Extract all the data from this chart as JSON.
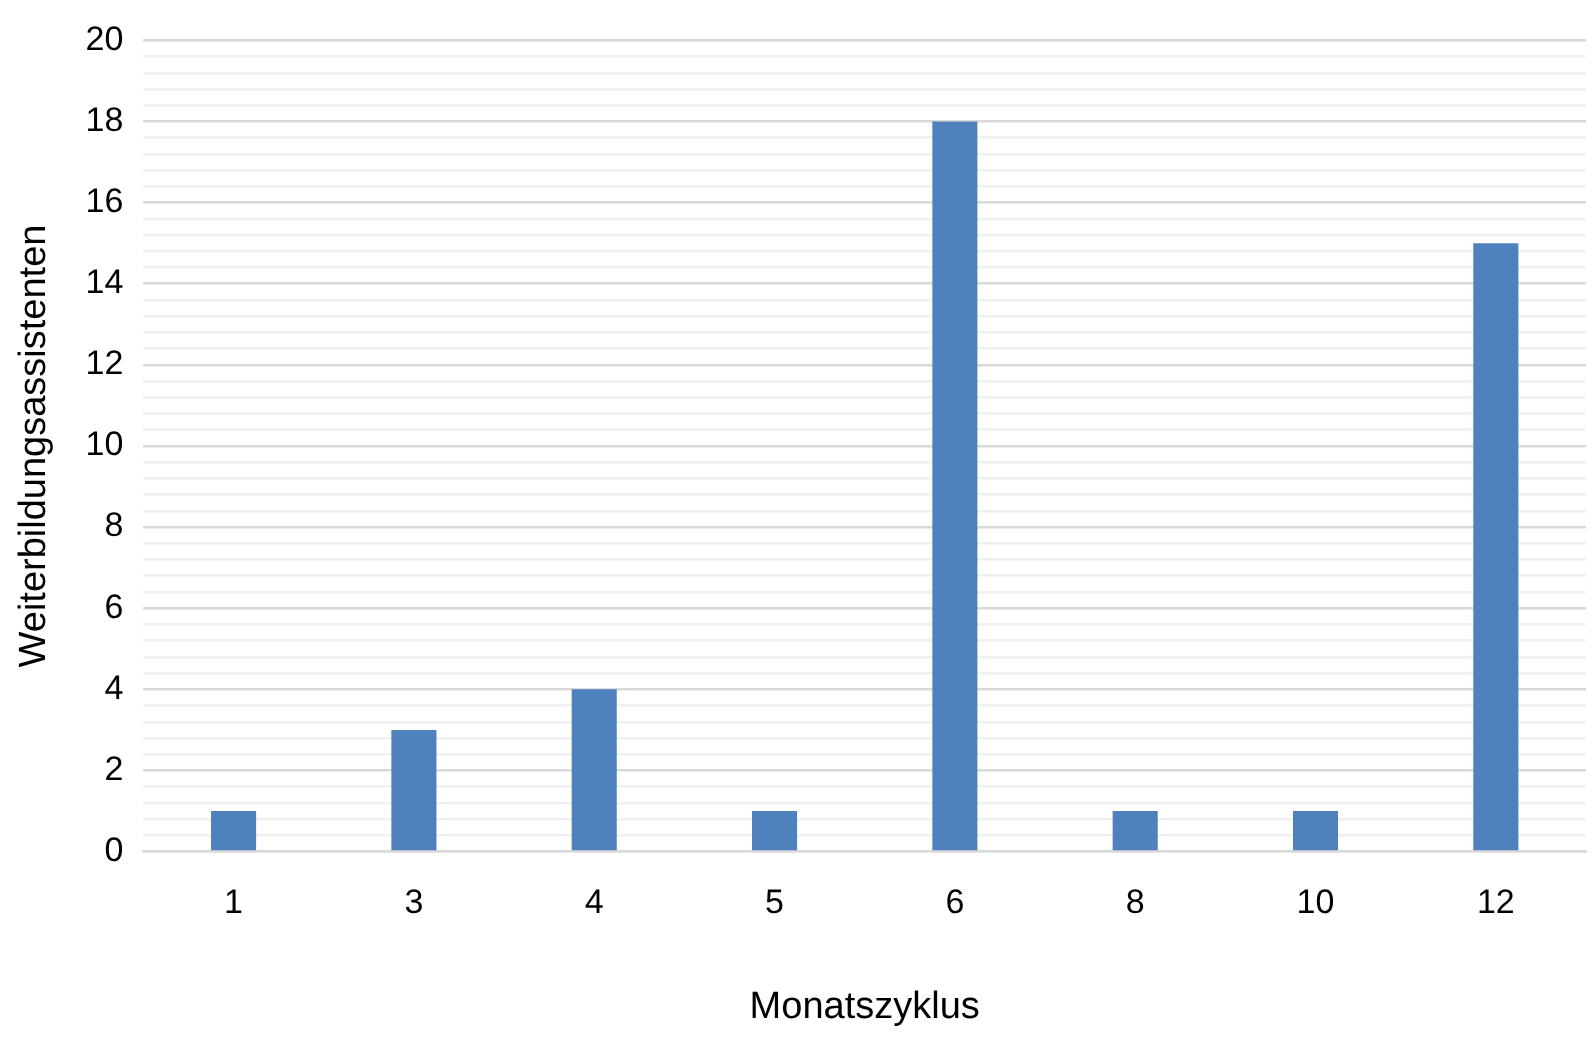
{
  "chart_data": {
    "type": "bar",
    "xlabel": "Monatszyklus",
    "ylabel": "Weiterbildungsassistenten",
    "categories": [
      "1",
      "3",
      "4",
      "5",
      "6",
      "8",
      "10",
      "12"
    ],
    "values": [
      1,
      3,
      4,
      1,
      18,
      1,
      1,
      15
    ],
    "color": "#4f81bd",
    "ylim": [
      0,
      20
    ],
    "yticks": [
      0,
      {
        "value": 0.4,
        "label": null
      },
      {
        "value": 0.8,
        "label": null
      },
      {
        "value": 1.2,
        "label": null
      },
      {
        "value": 1.6,
        "label": null
      },
      2,
      {
        "value": 2.4,
        "label": null
      },
      {
        "value": 2.8,
        "label": null
      },
      {
        "value": 3.2,
        "label": null
      },
      {
        "value": 3.6,
        "label": null
      },
      4,
      {
        "value": 4.4,
        "label": null
      },
      {
        "value": 4.8,
        "label": null
      },
      {
        "value": 5.2,
        "label": null
      },
      {
        "value": 5.6,
        "label": null
      },
      6,
      {
        "value": 6.4,
        "label": null
      },
      {
        "value": 6.8,
        "label": null
      },
      {
        "value": 7.2,
        "label": null
      },
      {
        "value": 7.6,
        "label": null
      },
      8,
      {
        "value": 8.4,
        "label": null
      },
      {
        "value": 8.8,
        "label": null
      },
      {
        "value": 9.2,
        "label": null
      },
      {
        "value": 9.6,
        "label": null
      },
      10,
      {
        "value": 10.4,
        "label": null
      },
      {
        "value": 10.8,
        "label": null
      },
      {
        "value": 11.2,
        "label": null
      },
      {
        "value": 11.6,
        "label": null
      },
      12,
      {
        "value": 12.4,
        "label": null
      },
      {
        "value": 12.8,
        "label": null
      },
      {
        "value": 13.2,
        "label": null
      },
      {
        "value": 13.6,
        "label": null
      },
      14,
      {
        "value": 14.4,
        "label": null
      },
      {
        "value": 14.8,
        "label": null
      },
      {
        "value": 15.2,
        "label": null
      },
      {
        "value": 15.6,
        "label": null
      },
      16,
      {
        "value": 16.4,
        "label": null
      },
      {
        "value": 16.8,
        "label": null
      },
      {
        "value": 17.2,
        "label": null
      },
      {
        "value": 17.6,
        "label": null
      },
      18,
      {
        "value": 18.4,
        "label": null
      },
      {
        "value": 18.8,
        "label": null
      },
      {
        "value": 19.2,
        "label": null
      },
      {
        "value": 19.6,
        "label": null
      },
      20
    ],
    "grid": "y"
  }
}
